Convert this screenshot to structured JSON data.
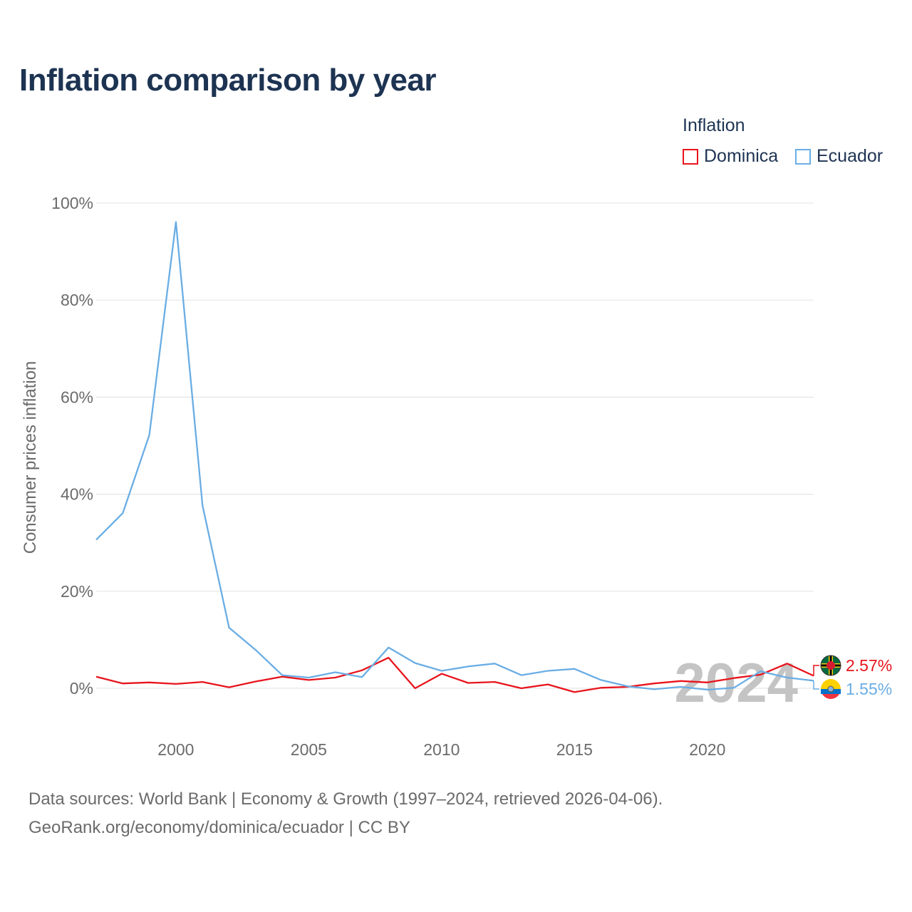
{
  "title": "Inflation comparison by year",
  "legend": {
    "title": "Inflation",
    "items": [
      {
        "name": "Dominica",
        "color": "#e8141c"
      },
      {
        "name": "Ecuador",
        "color": "#6aade4"
      }
    ]
  },
  "source": {
    "line1": "Data sources: World Bank | Economy & Growth (1997–2024, retrieved 2026-04-06).",
    "line2": "GeoRank.org/economy/dominica/ecuador | CC BY"
  },
  "chart_data": {
    "type": "line",
    "title": "Inflation comparison by year",
    "xlabel": "",
    "ylabel": "Consumer prices inflation",
    "xlim": [
      1997,
      2024
    ],
    "ylim": [
      -7,
      100
    ],
    "yticks": [
      0,
      20,
      40,
      60,
      80,
      100
    ],
    "ytick_labels": [
      "0%",
      "20%",
      "40%",
      "60%",
      "80%",
      "100%"
    ],
    "xticks": [
      2000,
      2005,
      2010,
      2015,
      2020
    ],
    "xtick_labels": [
      "2000",
      "2005",
      "2010",
      "2015",
      "2020"
    ],
    "grid": true,
    "watermark_year": "2024",
    "x": [
      1997,
      1998,
      1999,
      2000,
      2001,
      2002,
      2003,
      2004,
      2005,
      2006,
      2007,
      2008,
      2009,
      2010,
      2011,
      2012,
      2013,
      2014,
      2015,
      2016,
      2017,
      2018,
      2019,
      2020,
      2021,
      2022,
      2023,
      2024
    ],
    "series": [
      {
        "name": "Dominica",
        "color": "#e8141c",
        "end_label": "2.57%",
        "flag": "dominica-flag-icon",
        "values": [
          2.4,
          1.0,
          1.2,
          0.9,
          1.3,
          0.2,
          1.4,
          2.4,
          1.7,
          2.2,
          3.7,
          6.3,
          0.0,
          3.0,
          1.1,
          1.3,
          0.0,
          0.8,
          -0.8,
          0.1,
          0.3,
          1.0,
          1.5,
          1.2,
          2.1,
          2.8,
          5.1,
          2.57
        ]
      },
      {
        "name": "Ecuador",
        "color": "#6aade4",
        "end_label": "1.55%",
        "flag": "ecuador-flag-icon",
        "values": [
          30.6,
          36.1,
          52.2,
          96.1,
          37.7,
          12.5,
          7.9,
          2.7,
          2.2,
          3.3,
          2.3,
          8.4,
          5.2,
          3.6,
          4.5,
          5.1,
          2.7,
          3.6,
          4.0,
          1.7,
          0.4,
          -0.2,
          0.3,
          -0.3,
          0.1,
          3.5,
          2.2,
          1.55
        ]
      }
    ]
  }
}
